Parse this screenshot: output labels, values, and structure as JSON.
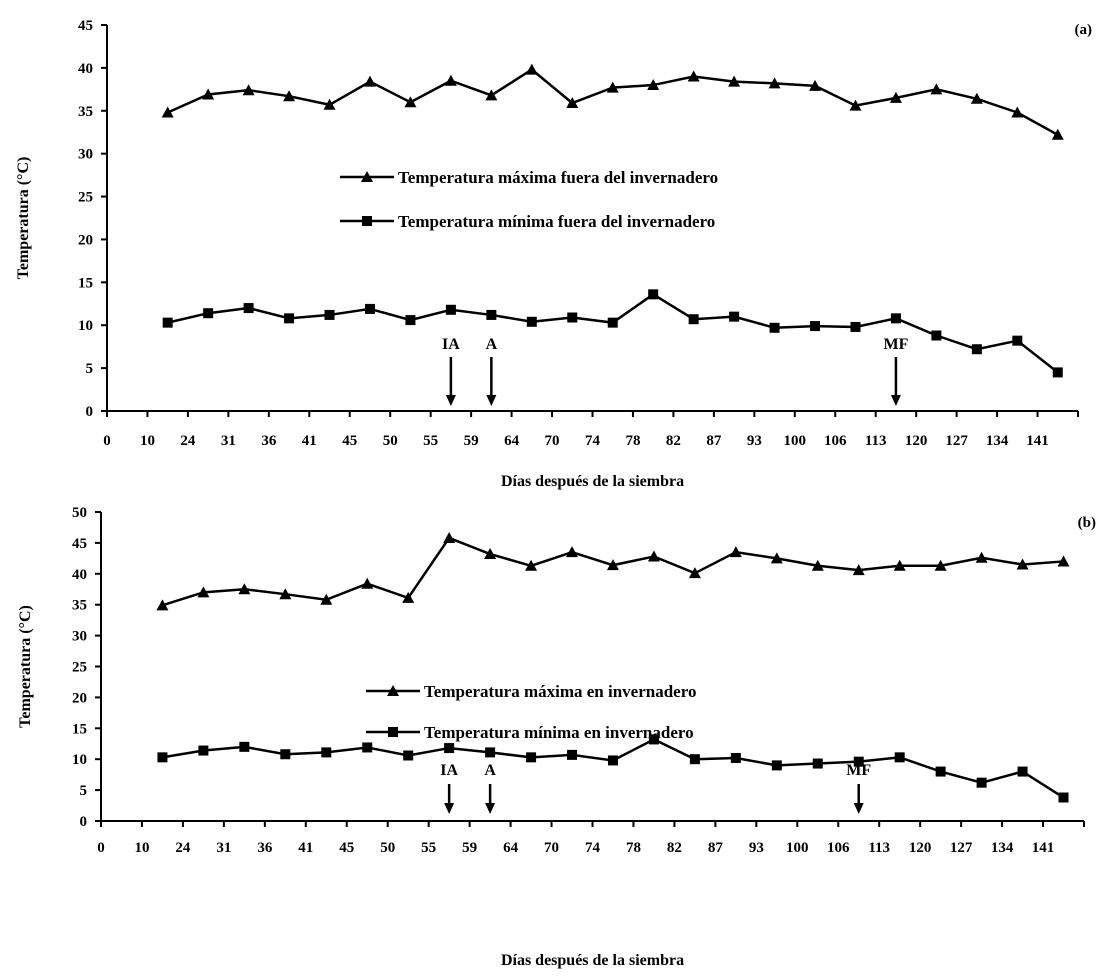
{
  "chart_data": [
    {
      "type": "line",
      "panel_label": "(a)",
      "categories": [
        "0",
        "10",
        "24",
        "31",
        "36",
        "41",
        "45",
        "50",
        "55",
        "59",
        "64",
        "70",
        "74",
        "78",
        "82",
        "87",
        "93",
        "100",
        "106",
        "113",
        "120",
        "127",
        "134",
        "141"
      ],
      "x_numeric": [
        0,
        10,
        24,
        31,
        36,
        41,
        45,
        50,
        55,
        59,
        64,
        70,
        74,
        78,
        82,
        87,
        93,
        100,
        106,
        113,
        120,
        127,
        134,
        141
      ],
      "xlabel": "Días después de la siembra",
      "ylabel": "Temperatura (°C)",
      "ylim": [
        0,
        45
      ],
      "yticks": [
        "0",
        "5",
        "10",
        "15",
        "20",
        "25",
        "30",
        "35",
        "40",
        "45"
      ],
      "grid": false,
      "legend_position": "center",
      "series": [
        {
          "name": "Temperatura máxima fuera del invernadero",
          "marker": "triangle",
          "values": [
            null,
            34.8,
            36.9,
            37.4,
            36.7,
            35.7,
            38.4,
            36.0,
            38.5,
            36.8,
            39.8,
            35.9,
            37.7,
            38.0,
            39.0,
            38.4,
            38.2,
            37.9,
            35.6,
            36.5,
            37.5,
            36.4,
            34.8,
            32.2
          ]
        },
        {
          "name": "Temperatura mínima fuera del invernadero",
          "marker": "square",
          "values": [
            null,
            10.3,
            11.4,
            12.0,
            10.8,
            11.2,
            11.9,
            10.6,
            11.8,
            11.2,
            10.4,
            10.9,
            10.3,
            13.6,
            10.7,
            11.0,
            9.7,
            9.9,
            9.8,
            10.8,
            8.8,
            7.2,
            8.2,
            4.5
          ]
        }
      ],
      "annotations": [
        {
          "label": "IA",
          "x_index": 8
        },
        {
          "label": "A",
          "x_index": 9
        },
        {
          "label": "MF",
          "x_index": 19
        }
      ]
    },
    {
      "type": "line",
      "panel_label": "(b)",
      "categories": [
        "0",
        "10",
        "24",
        "31",
        "36",
        "41",
        "45",
        "50",
        "55",
        "59",
        "64",
        "70",
        "74",
        "78",
        "82",
        "87",
        "93",
        "100",
        "106",
        "113",
        "120",
        "127",
        "134",
        "141"
      ],
      "x_numeric": [
        0,
        10,
        24,
        31,
        36,
        41,
        45,
        50,
        55,
        59,
        64,
        70,
        74,
        78,
        82,
        87,
        93,
        100,
        106,
        113,
        120,
        127,
        134,
        141
      ],
      "xlabel": "Días después de la siembra",
      "ylabel": "Temperatura (°C)",
      "ylim": [
        0,
        50
      ],
      "yticks": [
        "0",
        "5",
        "10",
        "15",
        "20",
        "25",
        "30",
        "35",
        "40",
        "45",
        "50"
      ],
      "grid": false,
      "legend_position": "center",
      "series": [
        {
          "name": "Temperatura máxima en invernadero",
          "marker": "triangle",
          "values": [
            null,
            34.9,
            37.0,
            37.5,
            36.7,
            35.8,
            38.4,
            36.1,
            45.8,
            43.2,
            41.3,
            43.5,
            41.4,
            42.8,
            40.1,
            43.5,
            42.5,
            41.3,
            40.6,
            41.3,
            41.3,
            42.6,
            41.5,
            42.0
          ]
        },
        {
          "name": "Temperatura mínima en invernadero",
          "marker": "square",
          "values": [
            null,
            10.3,
            11.4,
            12.0,
            10.8,
            11.1,
            11.9,
            10.6,
            11.8,
            11.1,
            10.3,
            10.7,
            9.8,
            13.2,
            10.0,
            10.2,
            9.0,
            9.3,
            9.6,
            10.3,
            8.0,
            6.2,
            8.0,
            3.8
          ]
        }
      ],
      "annotations": [
        {
          "label": "IA",
          "x_index": 8
        },
        {
          "label": "A",
          "x_index": 9
        },
        {
          "label": "MF",
          "x_index": 18
        }
      ]
    }
  ]
}
